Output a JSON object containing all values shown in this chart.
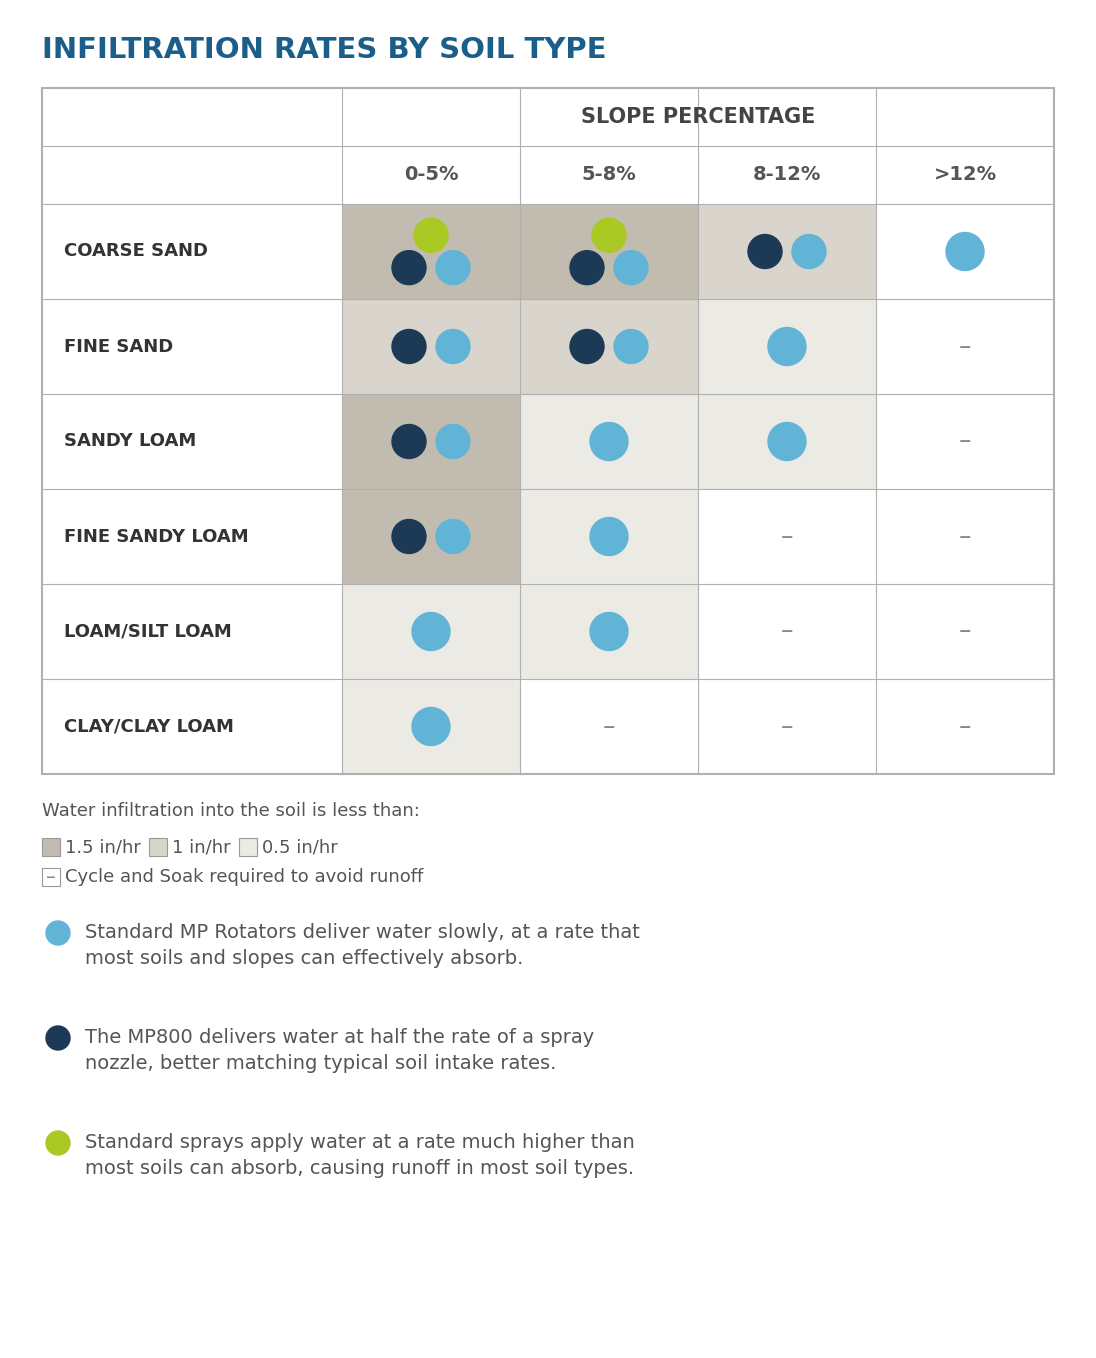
{
  "title": "INFILTRATION RATES BY SOIL TYPE",
  "title_color": "#1b5e8a",
  "slope_header": "SLOPE PERCENTAGE",
  "slope_cols": [
    "0-5%",
    "5-8%",
    "8-12%",
    ">12%"
  ],
  "soil_rows": [
    "COARSE SAND",
    "FINE SAND",
    "SANDY LOAM",
    "FINE SANDY LOAM",
    "LOAM/SILT LOAM",
    "CLAY/CLAY LOAM"
  ],
  "color_light_blue": "#62b4d6",
  "color_dark_blue": "#1c3a56",
  "color_yellow_green": "#aac923",
  "color_dash": "#888888",
  "bg_dark": "#c2bbaf",
  "bg_medium": "#d9d4cc",
  "bg_light": "#eceae5",
  "bg_white": "#ffffff",
  "legend_text1": "Water infiltration into the soil is less than:",
  "legend_label1": "1.5 in/hr",
  "legend_label2": "1 in/hr",
  "legend_label3": "0.5 in/hr",
  "legend_label4": "Cycle and Soak required to avoid runoff",
  "note1_bullet_color": "#62b4d6",
  "note1_text": "Standard MP Rotators deliver water slowly, at a rate that\nmost soils and slopes can effectively absorb.",
  "note2_bullet_color": "#1c3a56",
  "note2_text": "The MP800 delivers water at half the rate of a spray\nnozzle, better matching typical soil intake rates.",
  "note3_bullet_color": "#aac923",
  "note3_text": "Standard sprays apply water at a rate much higher than\nmost soils can absorb, causing runoff in most soil types.",
  "table": {
    "COARSE SAND": {
      "0-5%": "yg_dk_bl",
      "5-8%": "yg_dk_bl",
      "8-12%": "dk_bl",
      ">12%": "bl"
    },
    "FINE SAND": {
      "0-5%": "dk_bl",
      "5-8%": "dk_bl",
      "8-12%": "bl",
      ">12%": null
    },
    "SANDY LOAM": {
      "0-5%": "dk_bl",
      "5-8%": "bl",
      "8-12%": "bl",
      ">12%": null
    },
    "FINE SANDY LOAM": {
      "0-5%": "dk_bl",
      "5-8%": "bl",
      "8-12%": null,
      ">12%": null
    },
    "LOAM/SILT LOAM": {
      "0-5%": "bl",
      "5-8%": "bl",
      "8-12%": null,
      ">12%": null
    },
    "CLAY/CLAY LOAM": {
      "0-5%": "bl",
      "5-8%": null,
      "8-12%": null,
      ">12%": null
    }
  },
  "cell_bg": {
    "COARSE SAND": {
      "0-5%": "dark",
      "5-8%": "dark",
      "8-12%": "medium",
      ">12%": "white"
    },
    "FINE SAND": {
      "0-5%": "medium",
      "5-8%": "medium",
      "8-12%": "light",
      ">12%": "white"
    },
    "SANDY LOAM": {
      "0-5%": "dark",
      "5-8%": "light",
      "8-12%": "light",
      ">12%": "white"
    },
    "FINE SANDY LOAM": {
      "0-5%": "dark",
      "5-8%": "light",
      "8-12%": "white",
      ">12%": "white"
    },
    "LOAM/SILT LOAM": {
      "0-5%": "light",
      "5-8%": "light",
      "8-12%": "white",
      ">12%": "white"
    },
    "CLAY/CLAY LOAM": {
      "0-5%": "light",
      "5-8%": "white",
      "8-12%": "white",
      ">12%": "white"
    }
  }
}
